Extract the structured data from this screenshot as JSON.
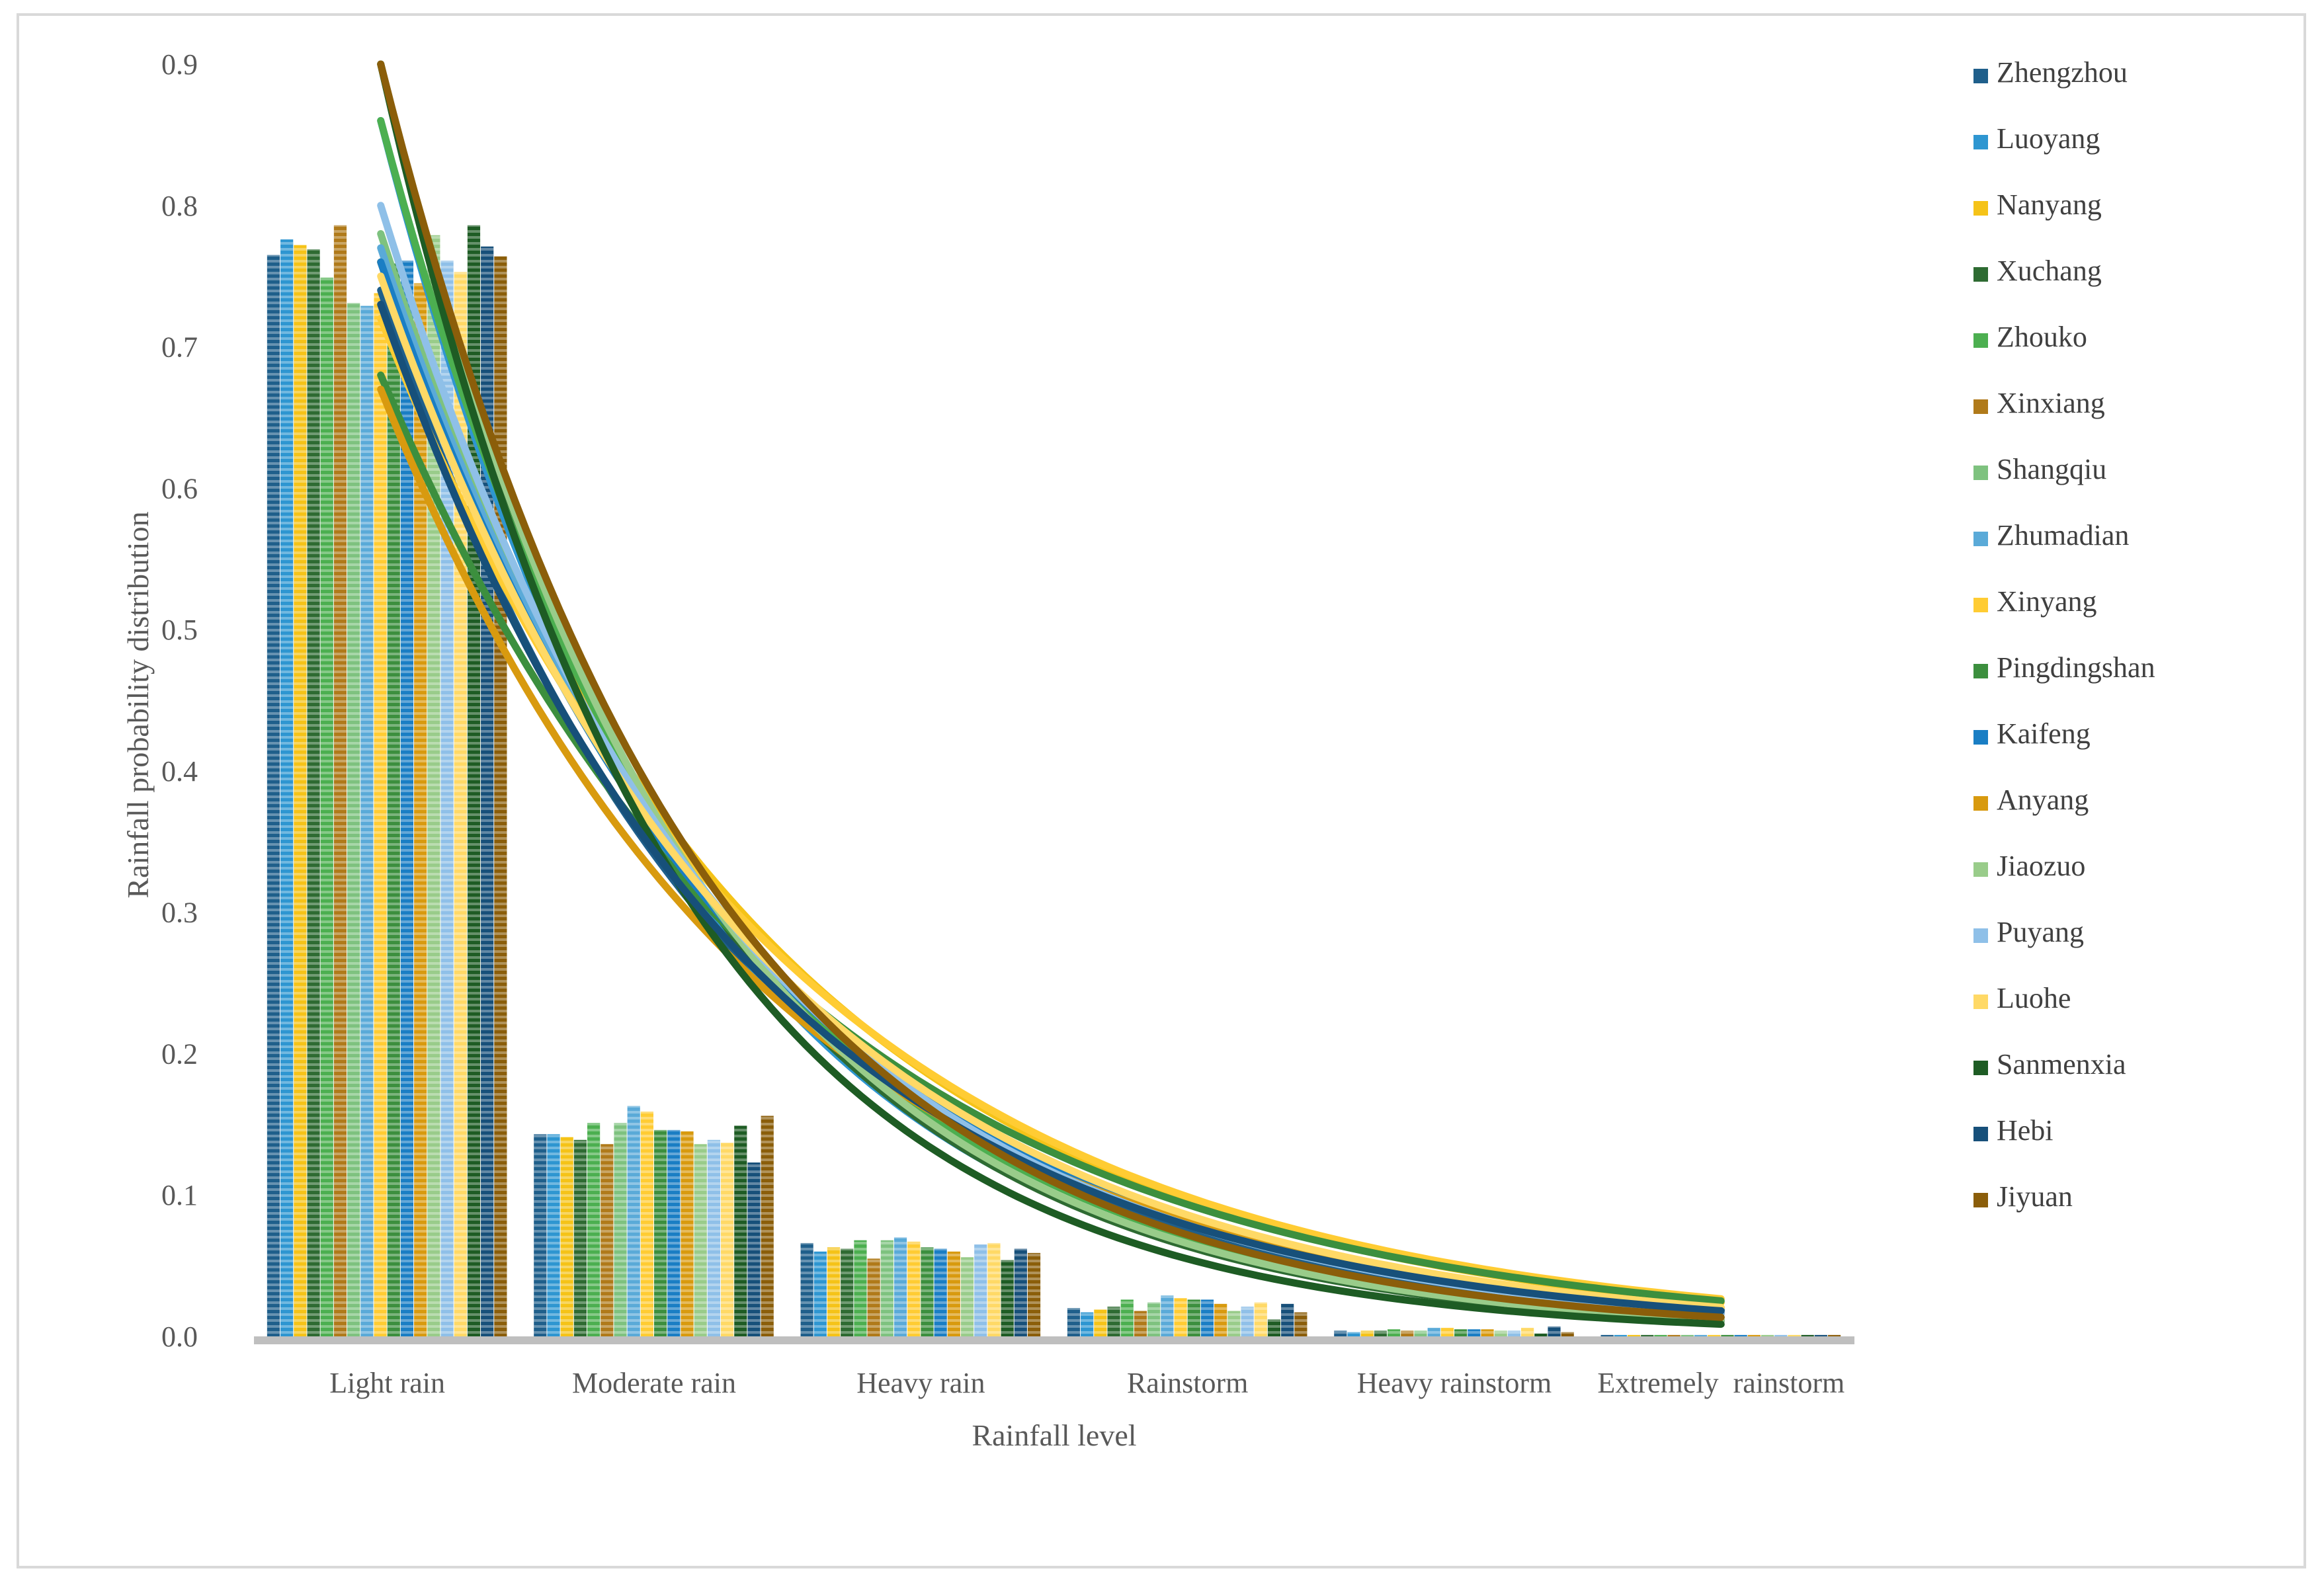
{
  "chart_data": {
    "type": "bar",
    "xlabel": "Rainfall level",
    "ylabel": "Rainfall probability distribution",
    "ylim": [
      0,
      0.9
    ],
    "yticks": [
      "0.0",
      "0.1",
      "0.2",
      "0.3",
      "0.4",
      "0.5",
      "0.6",
      "0.7",
      "0.8",
      "0.9"
    ],
    "grid": false,
    "legend_position": "right",
    "categories": [
      "Light rain",
      "Moderate rain",
      "Heavy rain",
      "Rainstorm",
      "Heavy rainstorm",
      "Extremely  rainstorm"
    ],
    "series": [
      {
        "name": "Zhengzhou",
        "color": "#1f5f8b",
        "values": [
          0.765,
          0.143,
          0.066,
          0.02,
          0.004,
          0.001
        ]
      },
      {
        "name": "Luoyang",
        "color": "#2e96d1",
        "values": [
          0.776,
          0.143,
          0.06,
          0.017,
          0.003,
          0.001
        ]
      },
      {
        "name": "Nanyang",
        "color": "#f5c318",
        "values": [
          0.772,
          0.141,
          0.063,
          0.019,
          0.004,
          0.001
        ]
      },
      {
        "name": "Xuchang",
        "color": "#2e6b32",
        "values": [
          0.769,
          0.139,
          0.062,
          0.021,
          0.004,
          0.001
        ]
      },
      {
        "name": "Zhouko",
        "color": "#4caf50",
        "values": [
          0.749,
          0.151,
          0.068,
          0.026,
          0.005,
          0.001
        ]
      },
      {
        "name": "Xinxiang",
        "color": "#b07a1a",
        "values": [
          0.786,
          0.136,
          0.055,
          0.018,
          0.004,
          0.001
        ]
      },
      {
        "name": "Shangqiu",
        "color": "#7ec27f",
        "values": [
          0.731,
          0.151,
          0.068,
          0.024,
          0.004,
          0.001
        ]
      },
      {
        "name": "Zhumadian",
        "color": "#5aaad8",
        "values": [
          0.729,
          0.163,
          0.07,
          0.029,
          0.006,
          0.001
        ]
      },
      {
        "name": "Xinyang",
        "color": "#ffcc33",
        "values": [
          0.738,
          0.159,
          0.067,
          0.027,
          0.006,
          0.001
        ]
      },
      {
        "name": "Pingdingshan",
        "color": "#3c8f3e",
        "values": [
          0.759,
          0.146,
          0.063,
          0.026,
          0.005,
          0.001
        ]
      },
      {
        "name": "Kaifeng",
        "color": "#1a7ec4",
        "values": [
          0.761,
          0.146,
          0.062,
          0.026,
          0.005,
          0.001
        ]
      },
      {
        "name": "Anyang",
        "color": "#d89a0f",
        "values": [
          0.745,
          0.145,
          0.06,
          0.023,
          0.005,
          0.001
        ]
      },
      {
        "name": "Jiaozuo",
        "color": "#99cc8a",
        "values": [
          0.779,
          0.136,
          0.056,
          0.018,
          0.004,
          0.001
        ]
      },
      {
        "name": "Puyang",
        "color": "#8fc0e8",
        "values": [
          0.761,
          0.139,
          0.065,
          0.021,
          0.004,
          0.001
        ]
      },
      {
        "name": "Luohe",
        "color": "#ffd966",
        "values": [
          0.753,
          0.137,
          0.066,
          0.024,
          0.006,
          0.001
        ]
      },
      {
        "name": "Sanmenxia",
        "color": "#1e5c24",
        "values": [
          0.786,
          0.149,
          0.054,
          0.012,
          0.002,
          0.001
        ]
      },
      {
        "name": "Hebi",
        "color": "#17507a",
        "values": [
          0.771,
          0.123,
          0.062,
          0.023,
          0.007,
          0.001
        ]
      },
      {
        "name": "Jiyuan",
        "color": "#8b5e0a",
        "values": [
          0.764,
          0.156,
          0.059,
          0.017,
          0.003,
          0.001
        ]
      }
    ],
    "trendlines": [
      {
        "series": "Zhengzhou",
        "start": 0.74,
        "decay": 0.76
      },
      {
        "series": "Luoyang",
        "start": 0.86,
        "decay": 0.86
      },
      {
        "series": "Nanyang",
        "start": 0.76,
        "decay": 0.69
      },
      {
        "series": "Xuchang",
        "start": 0.9,
        "decay": 0.88
      },
      {
        "series": "Zhouko",
        "start": 0.86,
        "decay": 0.83
      },
      {
        "series": "Xinxiang",
        "start": 0.76,
        "decay": 0.74
      },
      {
        "series": "Shangqiu",
        "start": 0.78,
        "decay": 0.75
      },
      {
        "series": "Zhumadian",
        "start": 0.77,
        "decay": 0.74
      },
      {
        "series": "Xinyang",
        "start": 0.72,
        "decay": 0.66
      },
      {
        "series": "Pingdingshan",
        "start": 0.68,
        "decay": 0.66
      },
      {
        "series": "Kaifeng",
        "start": 0.76,
        "decay": 0.74
      },
      {
        "series": "Anyang",
        "start": 0.67,
        "decay": 0.7
      },
      {
        "series": "Jiaozuo",
        "start": 0.9,
        "decay": 0.87
      },
      {
        "series": "Puyang",
        "start": 0.8,
        "decay": 0.77
      },
      {
        "series": "Luohe",
        "start": 0.75,
        "decay": 0.72
      },
      {
        "series": "Sanmenxia",
        "start": 0.9,
        "decay": 0.93
      },
      {
        "series": "Hebi",
        "start": 0.73,
        "decay": 0.74
      },
      {
        "series": "Jiyuan",
        "start": 0.9,
        "decay": 0.84
      }
    ]
  }
}
